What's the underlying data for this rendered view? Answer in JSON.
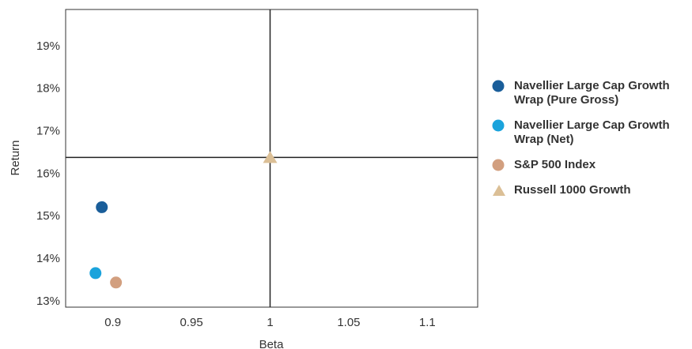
{
  "chart_data": {
    "type": "scatter",
    "xlabel": "Beta",
    "ylabel": "Return",
    "xlim": [
      0.87,
      1.132
    ],
    "ylim": [
      12.85,
      19.85
    ],
    "xticks": [
      {
        "value": 0.9,
        "label": "0.9"
      },
      {
        "value": 0.95,
        "label": "0.95"
      },
      {
        "value": 1,
        "label": "1"
      },
      {
        "value": 1.05,
        "label": "1.05"
      },
      {
        "value": 1.1,
        "label": "1.1"
      }
    ],
    "yticks": [
      {
        "value": 13,
        "label": "13%"
      },
      {
        "value": 14,
        "label": "14%"
      },
      {
        "value": 15,
        "label": "15%"
      },
      {
        "value": 16,
        "label": "16%"
      },
      {
        "value": 17,
        "label": "17%"
      },
      {
        "value": 18,
        "label": "18%"
      },
      {
        "value": 19,
        "label": "19%"
      }
    ],
    "reference_lines": {
      "x": 1,
      "y": 16.37
    },
    "grid": false,
    "legend_position": "right",
    "series": [
      {
        "name": "Navellier Large Cap Growth Wrap (Pure Gross)",
        "marker": "circle",
        "color": "#1a5e9a",
        "x": 0.893,
        "y": 15.2
      },
      {
        "name": "Navellier Large Cap Growth Wrap (Net)",
        "marker": "circle",
        "color": "#1aa3dc",
        "x": 0.889,
        "y": 13.65
      },
      {
        "name": "S&P 500 Index",
        "marker": "circle",
        "color": "#d29f7f",
        "x": 0.902,
        "y": 13.43
      },
      {
        "name": "Russell 1000 Growth",
        "marker": "triangle",
        "color": "#dbbf96",
        "x": 1,
        "y": 16.37
      }
    ]
  }
}
